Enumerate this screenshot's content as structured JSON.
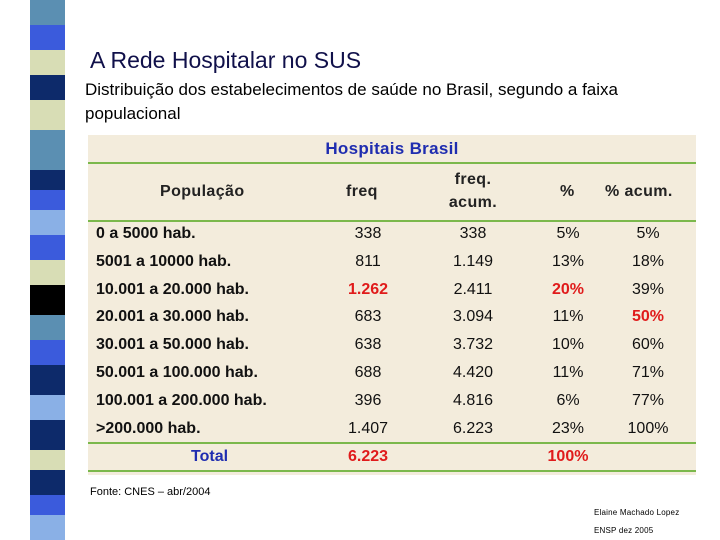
{
  "title": "A Rede Hospitalar no SUS",
  "subtitle": "Distribuição dos estabelecimentos de saúde no Brasil, segundo a faixa populacional",
  "table": {
    "caption": "Hospitais Brasil",
    "headers": {
      "population": "População",
      "freq": "freq",
      "freq_acum_line1": "freq.",
      "freq_acum_line2": "acum.",
      "pct": "%",
      "pct_acum": "% acum."
    },
    "rows": [
      {
        "pop": "0 a 5000 hab.",
        "freq": "338",
        "acum": "338",
        "pct": "5%",
        "pct_acum": "5%"
      },
      {
        "pop": "5001 a 10000 hab.",
        "freq": "811",
        "acum": "1.149",
        "pct": "13%",
        "pct_acum": "18%"
      },
      {
        "pop": "10.001 a 20.000 hab.",
        "freq": "1.262",
        "acum": "2.411",
        "pct": "20%",
        "pct_acum": "39%"
      },
      {
        "pop": "20.001 a 30.000 hab.",
        "freq": "683",
        "acum": "3.094",
        "pct": "11%",
        "pct_acum": "50%"
      },
      {
        "pop": "30.001 a 50.000 hab.",
        "freq": "638",
        "acum": "3.732",
        "pct": "10%",
        "pct_acum": "60%"
      },
      {
        "pop": "50.001 a 100.000 hab.",
        "freq": "688",
        "acum": "4.420",
        "pct": "11%",
        "pct_acum": "71%"
      },
      {
        "pop": "100.001 a 200.000 hab.",
        "freq": "396",
        "acum": "4.816",
        "pct": "6%",
        "pct_acum": "77%"
      },
      {
        "pop": ">200.000 hab.",
        "freq": "1.407",
        "acum": "6.223",
        "pct": "23%",
        "pct_acum": "100%"
      }
    ],
    "total": {
      "label": "Total",
      "freq": "6.223",
      "pct": "100%"
    }
  },
  "source": "Fonte: CNES – abr/2004",
  "author": {
    "name": "Elaine Machado Lopez",
    "org": "ENSP dez 2005"
  },
  "colors": {
    "accent_red": "#e01b1b",
    "accent_blue": "#1f2db0",
    "rule_green": "#7bb84c",
    "table_bg": "#f3ecdc"
  }
}
